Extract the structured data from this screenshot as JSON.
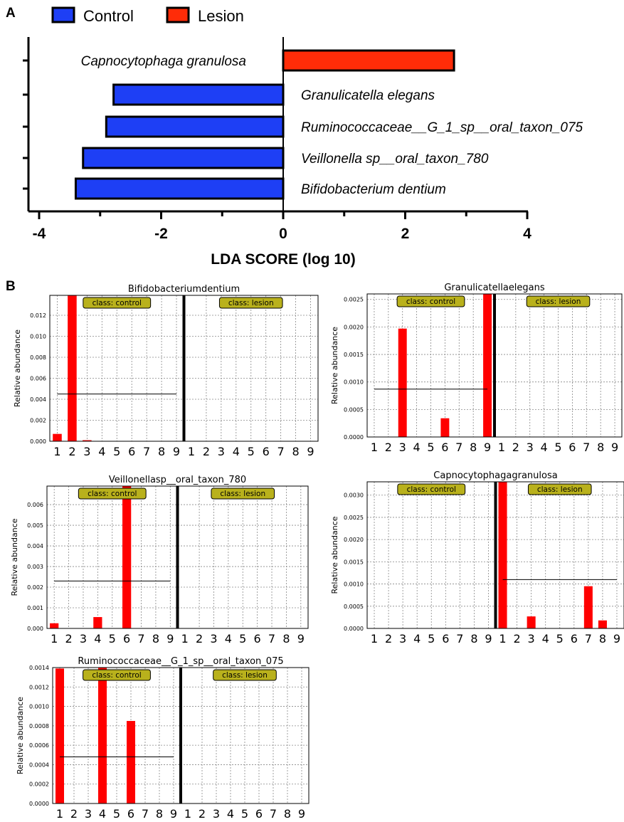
{
  "panel_labels": {
    "a": "A",
    "b": "B"
  },
  "colors": {
    "control": "#1e3ff5",
    "lesion": "#ff2c08",
    "bar_abund": "#ff0000",
    "class_box": "#b9b11c"
  },
  "chart_data": [
    {
      "type": "bar",
      "orientation": "horizontal",
      "legend": [
        {
          "name": "Control",
          "color": "#1e3ff5"
        },
        {
          "name": "Lesion",
          "color": "#ff2c08"
        }
      ],
      "legend_position": "top",
      "categories": [
        "Capnocytophaga granulosa",
        "Granulicatella elegans",
        "Ruminococcaceae__G_1_sp__oral_taxon_075",
        "Veillonella sp__oral_taxon_780",
        "Bifidobacterium dentium"
      ],
      "values": [
        2.8,
        -2.78,
        -2.9,
        -3.28,
        -3.4
      ],
      "groups": [
        "Lesion",
        "Control",
        "Control",
        "Control",
        "Control"
      ],
      "xlabel": "LDA  SCORE (log 10)",
      "xlim": [
        -4,
        4
      ],
      "xticks": [
        "-4",
        "-2",
        "0",
        "2",
        "4"
      ]
    },
    {
      "type": "bar",
      "title": "Bifidobacteriumdentium",
      "ylabel": "Relative abundance",
      "ylim": [
        0,
        0.0139
      ],
      "yticks": [
        0,
        0.002,
        0.004,
        0.006,
        0.008,
        0.01,
        0.012
      ],
      "ytick_labels": [
        "0.000",
        "0.002",
        "0.004",
        "0.006",
        "0.008",
        "0.010",
        "0.012"
      ],
      "divider_index": 9,
      "class_labels": [
        "class: control",
        "class: lesion"
      ],
      "xtick_labels": [
        "1",
        "2",
        "3",
        "4",
        "5",
        "6",
        "7",
        "8",
        "9",
        "1",
        "2",
        "3",
        "4",
        "5",
        "6",
        "7",
        "8",
        "9"
      ],
      "values": [
        0.0007,
        0.0139,
        0.0001,
        0,
        0,
        0,
        0,
        0,
        0,
        0,
        0,
        0,
        0,
        0,
        0,
        0,
        0,
        0
      ],
      "mean_lines": [
        0.0045,
        null
      ]
    },
    {
      "type": "bar",
      "title": "Granulicatellaelegans",
      "ylabel": "Relative abundance",
      "ylim": [
        0,
        0.0026
      ],
      "yticks": [
        0,
        0.0005,
        0.001,
        0.0015,
        0.002,
        0.0025
      ],
      "ytick_labels": [
        "0.0000",
        "0.0005",
        "0.0010",
        "0.0015",
        "0.0020",
        "0.0025"
      ],
      "divider_index": 9,
      "class_labels": [
        "class: control",
        "class: lesion"
      ],
      "xtick_labels": [
        "1",
        "2",
        "3",
        "4",
        "5",
        "6",
        "7",
        "8",
        "9",
        "1",
        "2",
        "3",
        "4",
        "5",
        "6",
        "7",
        "8",
        "9"
      ],
      "values": [
        0,
        0,
        0.00197,
        0,
        0,
        0.00034,
        0,
        0,
        0.0026,
        0,
        0,
        0,
        0,
        0,
        0,
        0,
        0,
        0
      ],
      "mean_lines": [
        0.00087,
        null
      ]
    },
    {
      "type": "bar",
      "title": "Veillonellasp__oral_taxon_780",
      "ylabel": "Relative abundance",
      "ylim": [
        0,
        0.0069
      ],
      "yticks": [
        0,
        0.001,
        0.002,
        0.003,
        0.004,
        0.005,
        0.006
      ],
      "ytick_labels": [
        "0.000",
        "0.001",
        "0.002",
        "0.003",
        "0.004",
        "0.005",
        "0.006"
      ],
      "divider_index": 9,
      "class_labels": [
        "class: control",
        "class: lesion"
      ],
      "xtick_labels": [
        "1",
        "2",
        "3",
        "4",
        "5",
        "6",
        "7",
        "8",
        "9",
        "1",
        "2",
        "3",
        "4",
        "5",
        "6",
        "7",
        "8",
        "9"
      ],
      "values": [
        0.00025,
        0,
        0,
        0.00055,
        0,
        0.0069,
        0,
        0,
        0,
        0,
        0,
        0,
        0,
        0,
        0,
        0,
        0,
        0
      ],
      "mean_lines": [
        0.0023,
        null
      ]
    },
    {
      "type": "bar",
      "title": "Capnocytophagagranulosa",
      "ylabel": "Relative abundance",
      "ylim": [
        0,
        0.0033
      ],
      "yticks": [
        0,
        0.0005,
        0.001,
        0.0015,
        0.002,
        0.0025,
        0.003
      ],
      "ytick_labels": [
        "0.0000",
        "0.0005",
        "0.0010",
        "0.0015",
        "0.0020",
        "0.0025",
        "0.0030"
      ],
      "divider_index": 9,
      "class_labels": [
        "class: control",
        "class: lesion"
      ],
      "xtick_labels": [
        "1",
        "2",
        "3",
        "4",
        "5",
        "6",
        "7",
        "8",
        "9",
        "1",
        "2",
        "3",
        "4",
        "5",
        "6",
        "7",
        "8",
        "9"
      ],
      "values": [
        0,
        0,
        0,
        0,
        0,
        0,
        0,
        0,
        0,
        0.0033,
        0,
        0.00027,
        0,
        0,
        0,
        0.00095,
        0.00018,
        0
      ],
      "mean_lines": [
        null,
        0.0011
      ]
    },
    {
      "type": "bar",
      "title": "Ruminococcaceae__G_1_sp__oral_taxon_075",
      "ylabel": "Relative abundance",
      "ylim": [
        0,
        0.0014
      ],
      "yticks": [
        0,
        0.0002,
        0.0004,
        0.0006,
        0.0008,
        0.001,
        0.0012,
        0.0014
      ],
      "ytick_labels": [
        "0.0000",
        "0.0002",
        "0.0004",
        "0.0006",
        "0.0008",
        "0.0010",
        "0.0012",
        "0.0014"
      ],
      "divider_index": 9,
      "class_labels": [
        "class: control",
        "class: lesion"
      ],
      "xtick_labels": [
        "1",
        "2",
        "3",
        "4",
        "5",
        "6",
        "7",
        "8",
        "9",
        "1",
        "2",
        "3",
        "4",
        "5",
        "6",
        "7",
        "8",
        "9"
      ],
      "values": [
        0.00139,
        0,
        0,
        0.0014,
        0,
        0.00085,
        0,
        0,
        0,
        0,
        0,
        0,
        0,
        0,
        0,
        0,
        0,
        0
      ],
      "mean_lines": [
        0.00048,
        null
      ]
    }
  ]
}
